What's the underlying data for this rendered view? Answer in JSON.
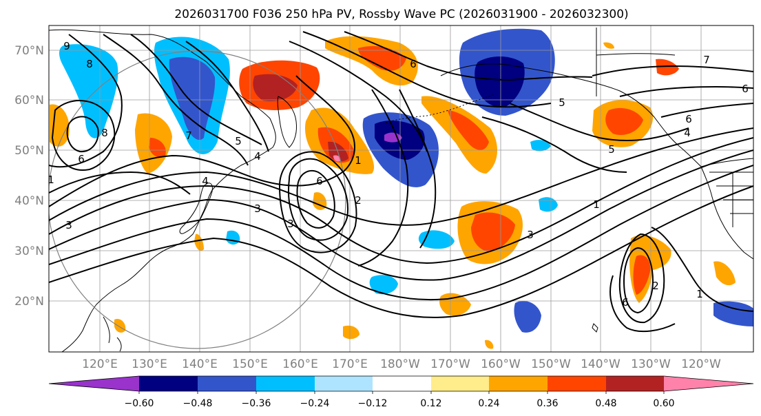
{
  "title": "2026031700 F036 250 hPa PV, Rossby Wave PC (2026031900 - 2026032300)",
  "lat_labels": [
    "70°N",
    "60°N",
    "50°N",
    "40°N",
    "30°N",
    "20°N"
  ],
  "lon_labels": [
    "120°E",
    "130°E",
    "140°E",
    "150°E",
    "160°E",
    "170°E",
    "180°W",
    "170°W",
    "160°W",
    "150°W",
    "140°W",
    "130°W",
    "120°W"
  ],
  "colorbar": {
    "colors": [
      "#9933cc",
      "#000080",
      "#3355cc",
      "#00bfff",
      "#aee4ff",
      "#ffffff",
      "#ffec8b",
      "#ffa500",
      "#ff4500",
      "#b22222",
      "#ff82ab"
    ],
    "tick_labels": [
      "−0.60",
      "−0.48",
      "−0.36",
      "−0.24",
      "−0.12",
      "0.12",
      "0.24",
      "0.36",
      "0.48",
      "0.60"
    ]
  },
  "contour_labels": [
    "9",
    "8",
    "8",
    "7",
    "6",
    "5",
    "4",
    "4",
    "3",
    "3",
    "3",
    "2",
    "1",
    "6",
    "6",
    "5",
    "6",
    "7",
    "6",
    "6",
    "4",
    "5",
    "1",
    "3",
    "1",
    "2",
    "1"
  ],
  "shade_colors": {
    "neg_light": "#aee4ff",
    "neg_mid": "#00bfff",
    "neg_strong": "#3355cc",
    "neg_max": "#000080",
    "neg_ext": "#9933cc",
    "pos_light": "#ffec8b",
    "pos_mid": "#ffa500",
    "pos_strong": "#ff4500",
    "pos_max": "#b22222",
    "pos_ext": "#ff82ab"
  }
}
